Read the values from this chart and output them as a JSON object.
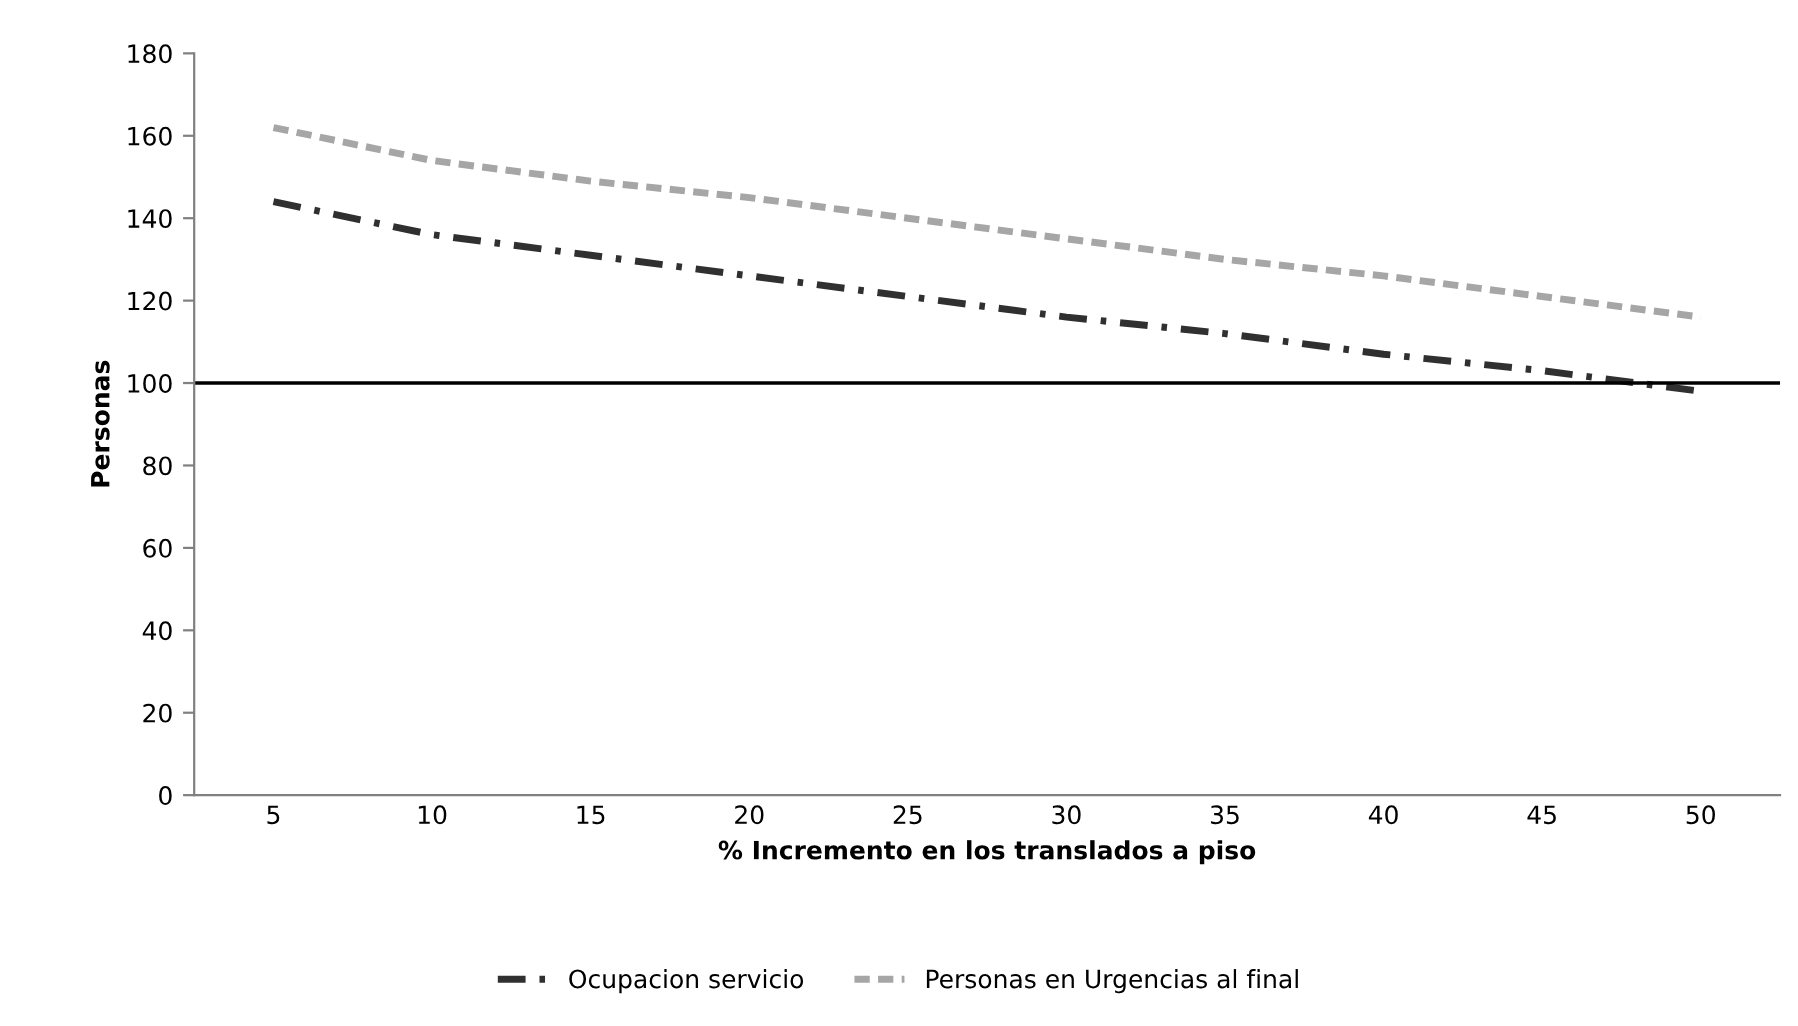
{
  "chart_data": {
    "type": "line",
    "xlabel": "% Incremento en los translados a piso",
    "ylabel": "Personas",
    "categories": [
      "5",
      "10",
      "15",
      "20",
      "25",
      "30",
      "35",
      "40",
      "45",
      "50"
    ],
    "series": [
      {
        "name": "Ocupacion servicio",
        "color": "#303030",
        "line_style": "dashdot",
        "values": [
          144,
          136,
          131,
          126,
          121,
          116,
          112,
          107,
          103,
          98
        ]
      },
      {
        "name": "Personas en Urgencias al final",
        "color": "#a6a6a6",
        "line_style": "dashed",
        "values": [
          162,
          154,
          149,
          145,
          140,
          135,
          130,
          126,
          121,
          116
        ]
      }
    ],
    "ylim": [
      0,
      180
    ],
    "yticks": [
      0,
      20,
      40,
      60,
      80,
      100,
      120,
      140,
      160,
      180
    ],
    "ref_lines": [
      {
        "axis": "y",
        "value": 100,
        "color": "#000000"
      }
    ],
    "grid": false,
    "legend": "bottom"
  }
}
